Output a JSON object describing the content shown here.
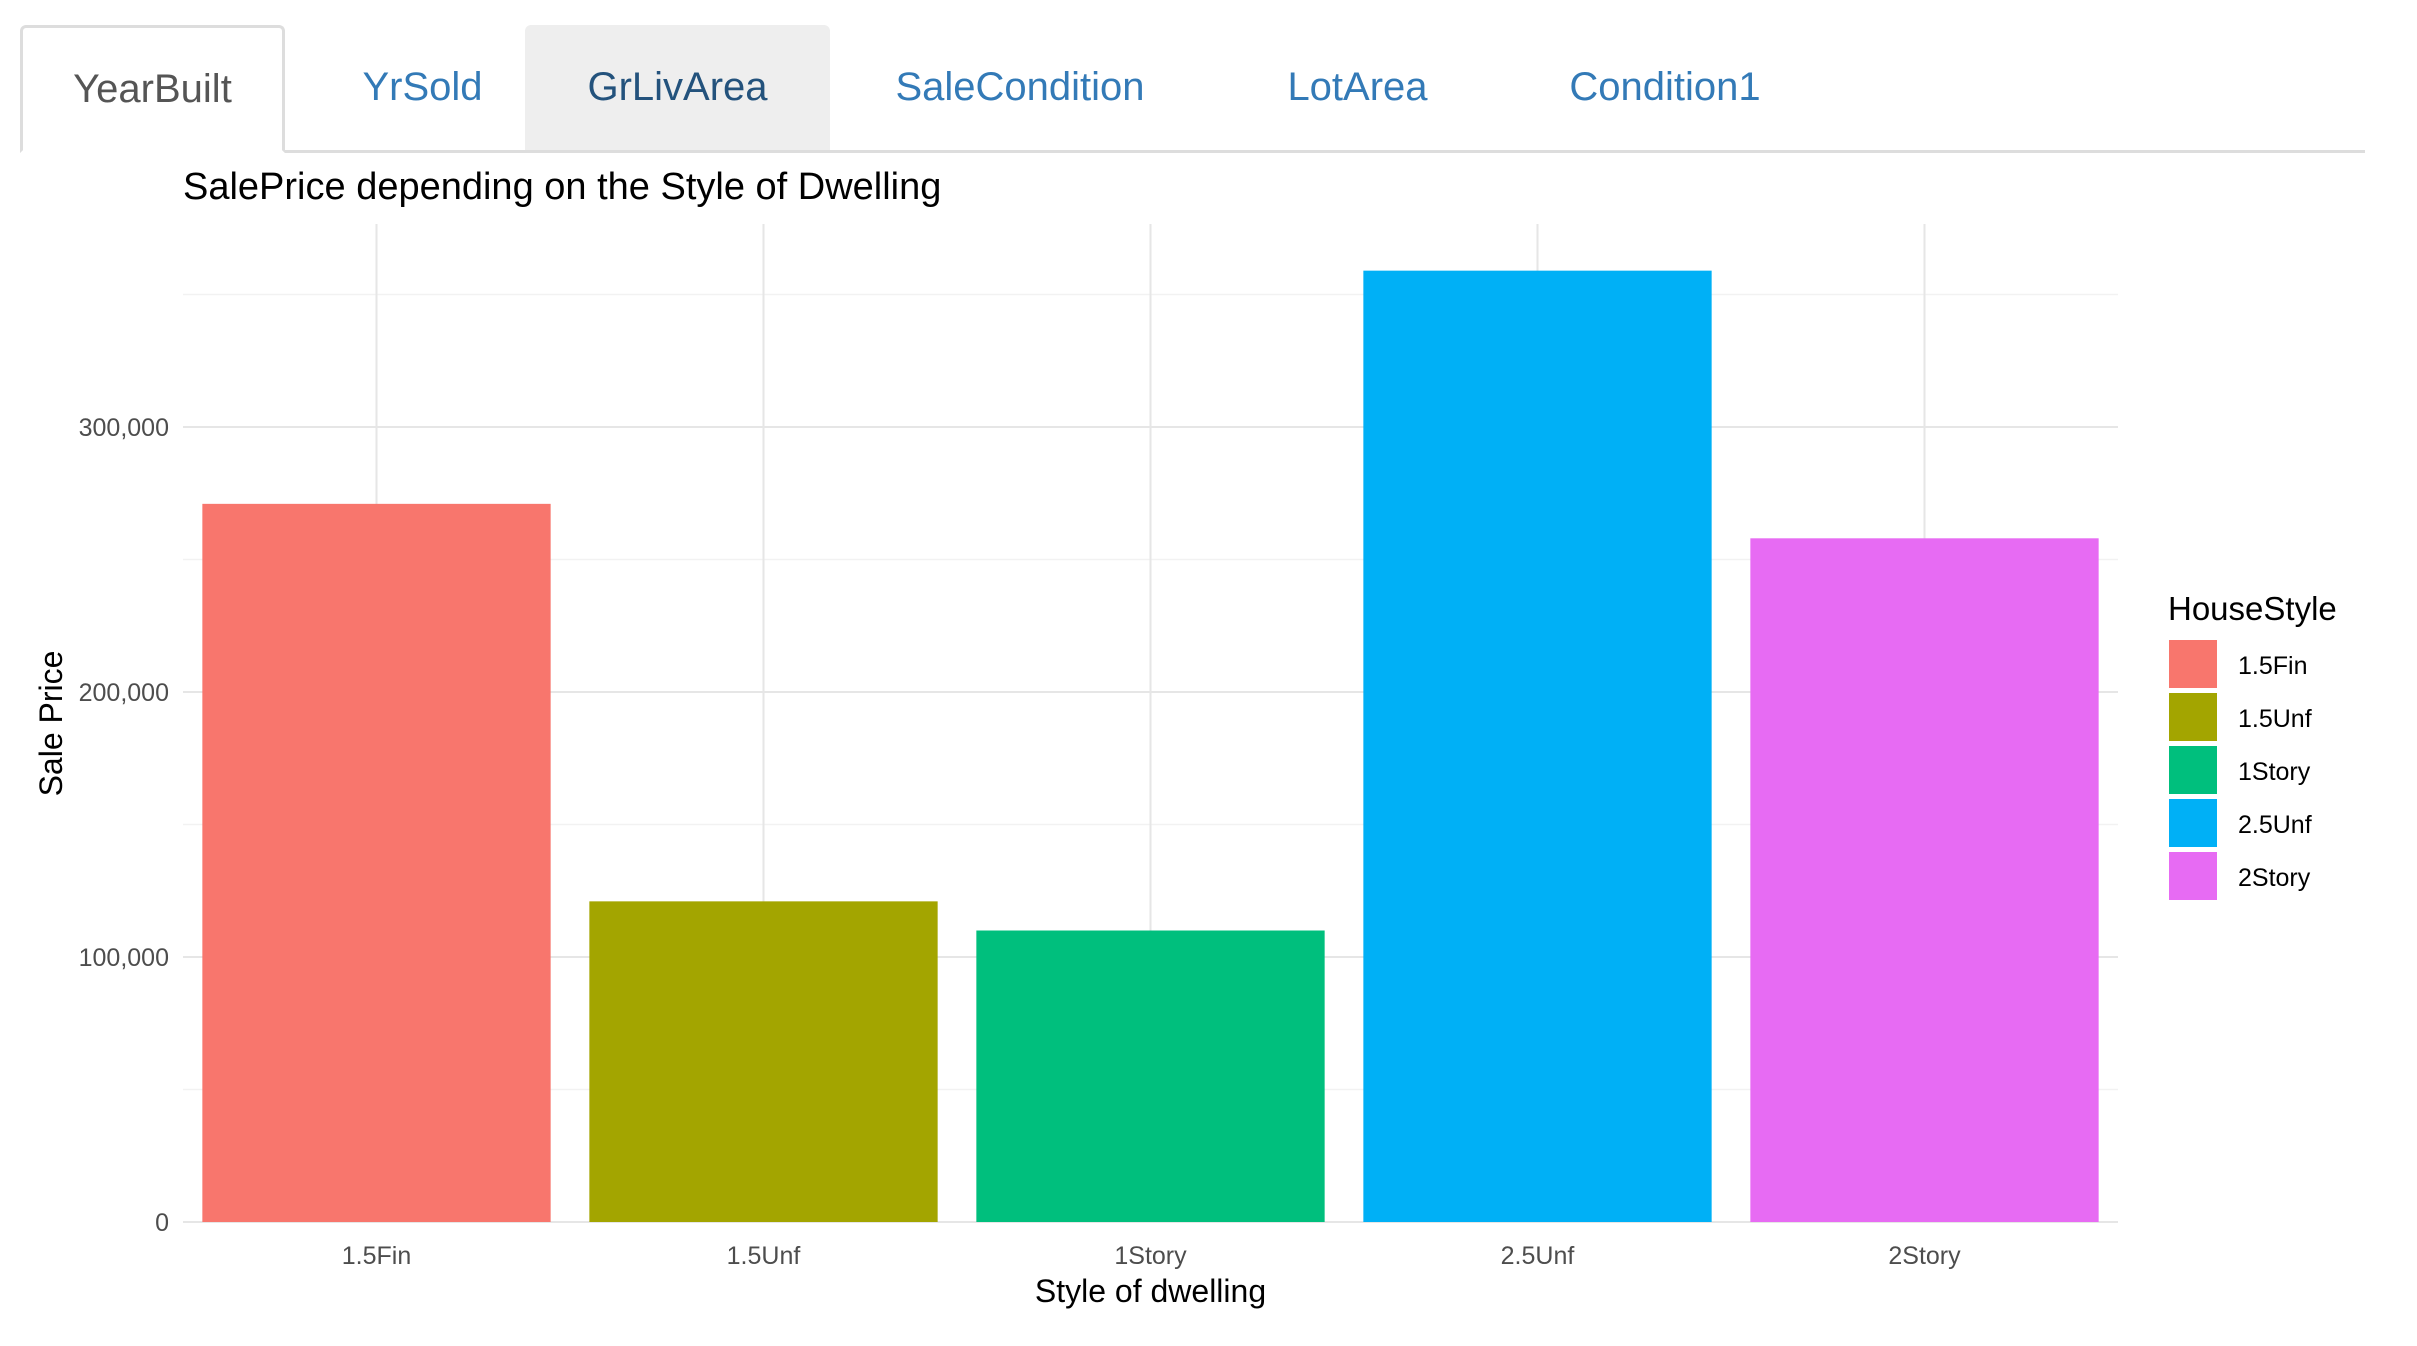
{
  "tabs": [
    {
      "label": "YearBuilt",
      "state": "active"
    },
    {
      "label": "YrSold",
      "state": "normal"
    },
    {
      "label": "GrLivArea",
      "state": "hover"
    },
    {
      "label": "SaleCondition",
      "state": "normal"
    },
    {
      "label": "LotArea",
      "state": "normal"
    },
    {
      "label": "Condition1",
      "state": "normal"
    }
  ],
  "chart_data": {
    "type": "bar",
    "title": "SalePrice depending on the Style of Dwelling",
    "xlabel": "Style of dwelling",
    "ylabel": "Sale Price",
    "categories": [
      "1.5Fin",
      "1.5Unf",
      "1Story",
      "2.5Unf",
      "2Story"
    ],
    "values": [
      271000,
      121000,
      110000,
      359000,
      258000
    ],
    "colors": [
      "#F8766D",
      "#A3A500",
      "#00BF7D",
      "#00B0F6",
      "#E76BF3"
    ],
    "ylim": [
      0,
      376000
    ],
    "yticks": [
      0,
      100000,
      200000,
      300000
    ],
    "ytick_labels": [
      "0",
      "100,000",
      "200,000",
      "300,000"
    ],
    "grid": true,
    "legend": {
      "title": "HouseStyle",
      "position": "right",
      "entries": [
        "1.5Fin",
        "1.5Unf",
        "1Story",
        "2.5Unf",
        "2Story"
      ]
    }
  }
}
